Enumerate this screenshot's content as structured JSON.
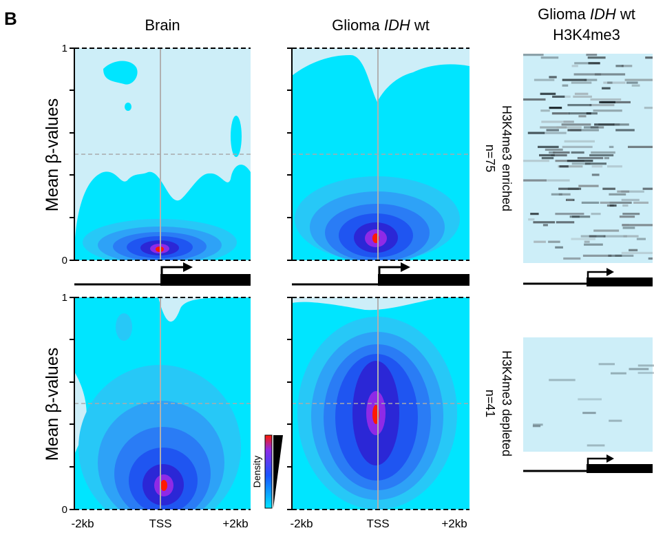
{
  "figure": {
    "panel_letter": "B",
    "col_titles": [
      "Brain",
      "Glioma",
      "Glioma"
    ],
    "col_titles_italic": [
      "",
      "IDH",
      "IDH"
    ],
    "col_titles_suffix": [
      "",
      " wt",
      " wt"
    ],
    "col3_subtitle": "H3K4me3",
    "ylabel": "Mean β-values",
    "row_labels": [
      "H3K4me3 enriched",
      "H3K4me3 depleted"
    ],
    "row_counts": [
      "n=75",
      "n=41"
    ],
    "x_ticks": [
      "-2kb",
      "TSS",
      "+2kb"
    ],
    "y_ticks": [
      "0",
      "1"
    ],
    "legend_label": "Density"
  },
  "colors": {
    "background": "#cdeef8",
    "low": "#00e5ff",
    "mid": "#1a53ff",
    "high": "#ff1a00",
    "purple": "#8f2ae6",
    "gene": "#000000"
  },
  "chart_data": [
    {
      "type": "heatmap",
      "title": "Brain",
      "row": "H3K4me3 enriched",
      "x_range": [
        "-2kb",
        "+2kb"
      ],
      "ylim": [
        0,
        1
      ],
      "density_peak": {
        "x": "TSS",
        "y": 0.05
      },
      "dashed_reference_y": 0.5
    },
    {
      "type": "heatmap",
      "title": "Glioma IDH wt",
      "row": "H3K4me3 enriched",
      "x_range": [
        "-2kb",
        "+2kb"
      ],
      "ylim": [
        0,
        1
      ],
      "density_peak": {
        "x": "TSS",
        "y": 0.1
      },
      "dashed_reference_y": 0.5
    },
    {
      "type": "heatmap",
      "title": "Brain",
      "row": "H3K4me3 depleted",
      "x_range": [
        "-2kb",
        "+2kb"
      ],
      "ylim": [
        0,
        1
      ],
      "density_peak": {
        "x": "TSS",
        "y": 0.11
      },
      "dashed_reference_y": 0.5
    },
    {
      "type": "heatmap",
      "title": "Glioma IDH wt",
      "row": "H3K4me3 depleted",
      "x_range": [
        "-2kb",
        "+2kb"
      ],
      "ylim": [
        0,
        1
      ],
      "density_peak": {
        "x": "TSS",
        "y": 0.44
      },
      "dashed_reference_y": 0.5
    }
  ]
}
